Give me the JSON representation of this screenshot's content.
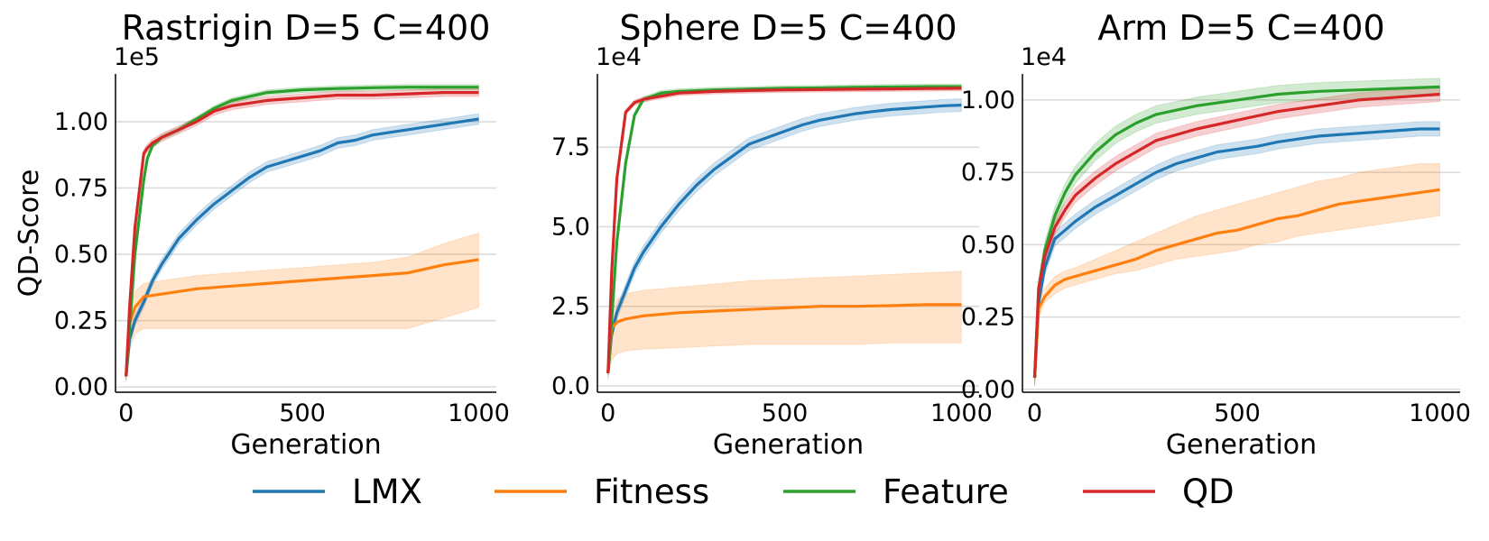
{
  "legend": [
    "LMX",
    "Fitness",
    "Feature",
    "QD"
  ],
  "colors": {
    "LMX": "#1f77b4",
    "Fitness": "#ff7f0e",
    "Feature": "#2ca02c",
    "QD": "#d62728"
  },
  "chart_data": [
    {
      "type": "line",
      "title": "Rastrigin D=5 C=400",
      "xlabel": "Generation",
      "ylabel": "QD-Score",
      "exponent_label": "1e5",
      "xlim": [
        -30,
        1050
      ],
      "ylim": [
        -0.02,
        1.18
      ],
      "xticks": [
        0,
        500,
        1000
      ],
      "xtick_labels": [
        "0",
        "500",
        "1000"
      ],
      "yticks": [
        0,
        0.25,
        0.5,
        0.75,
        1.0
      ],
      "ytick_labels": [
        "0.00",
        "0.25",
        "0.50",
        "0.75",
        "1.00"
      ],
      "grid": "horizontal",
      "series": [
        {
          "name": "LMX",
          "x": [
            0,
            10,
            25,
            50,
            75,
            100,
            150,
            200,
            250,
            300,
            350,
            400,
            450,
            500,
            550,
            600,
            650,
            700,
            750,
            800,
            850,
            900,
            950,
            1000
          ],
          "y": [
            0.04,
            0.18,
            0.25,
            0.32,
            0.4,
            0.46,
            0.56,
            0.63,
            0.69,
            0.74,
            0.79,
            0.83,
            0.85,
            0.87,
            0.89,
            0.92,
            0.93,
            0.95,
            0.96,
            0.97,
            0.98,
            0.99,
            1.0,
            1.01
          ],
          "band": 0.02
        },
        {
          "name": "Fitness",
          "x": [
            0,
            10,
            25,
            50,
            100,
            200,
            300,
            400,
            500,
            600,
            700,
            800,
            900,
            950,
            1000
          ],
          "y": [
            0.04,
            0.24,
            0.3,
            0.34,
            0.35,
            0.37,
            0.38,
            0.39,
            0.4,
            0.41,
            0.42,
            0.43,
            0.46,
            0.47,
            0.48
          ],
          "upper": [
            0.05,
            0.28,
            0.36,
            0.39,
            0.4,
            0.42,
            0.43,
            0.44,
            0.45,
            0.46,
            0.47,
            0.49,
            0.54,
            0.56,
            0.58
          ],
          "lower": [
            0.03,
            0.14,
            0.2,
            0.22,
            0.22,
            0.22,
            0.22,
            0.22,
            0.22,
            0.22,
            0.22,
            0.22,
            0.26,
            0.28,
            0.3
          ]
        },
        {
          "name": "Feature",
          "x": [
            0,
            10,
            25,
            50,
            60,
            75,
            100,
            150,
            200,
            250,
            300,
            400,
            500,
            600,
            700,
            800,
            900,
            1000
          ],
          "y": [
            0.04,
            0.22,
            0.5,
            0.78,
            0.86,
            0.91,
            0.94,
            0.97,
            1.01,
            1.05,
            1.08,
            1.11,
            1.12,
            1.125,
            1.128,
            1.13,
            1.13,
            1.13
          ],
          "band": 0.01
        },
        {
          "name": "QD",
          "x": [
            0,
            10,
            25,
            50,
            60,
            75,
            100,
            150,
            200,
            250,
            300,
            400,
            500,
            600,
            700,
            800,
            900,
            1000
          ],
          "y": [
            0.04,
            0.3,
            0.6,
            0.88,
            0.9,
            0.92,
            0.94,
            0.97,
            1.0,
            1.04,
            1.06,
            1.08,
            1.09,
            1.1,
            1.1,
            1.105,
            1.11,
            1.11
          ],
          "band": 0.015
        }
      ]
    },
    {
      "type": "line",
      "title": "Sphere D=5 C=400",
      "xlabel": "Generation",
      "ylabel": "",
      "exponent_label": "1e4",
      "xlim": [
        -30,
        1050
      ],
      "ylim": [
        -0.2,
        9.8
      ],
      "xticks": [
        0,
        500,
        1000
      ],
      "xtick_labels": [
        "0",
        "500",
        "1000"
      ],
      "yticks": [
        0,
        2.5,
        5.0,
        7.5
      ],
      "ytick_labels": [
        "0.0",
        "2.5",
        "5.0",
        "7.5"
      ],
      "grid": "horizontal",
      "series": [
        {
          "name": "LMX",
          "x": [
            0,
            10,
            25,
            50,
            75,
            100,
            150,
            200,
            250,
            300,
            350,
            400,
            450,
            500,
            550,
            600,
            650,
            700,
            750,
            800,
            850,
            900,
            950,
            1000
          ],
          "y": [
            0.4,
            1.6,
            2.3,
            3.0,
            3.7,
            4.2,
            5.0,
            5.7,
            6.3,
            6.8,
            7.2,
            7.6,
            7.8,
            8.0,
            8.2,
            8.35,
            8.45,
            8.55,
            8.62,
            8.68,
            8.72,
            8.76,
            8.8,
            8.82
          ],
          "band": 0.2
        },
        {
          "name": "Fitness",
          "x": [
            0,
            10,
            25,
            50,
            100,
            200,
            300,
            400,
            500,
            600,
            700,
            800,
            900,
            1000
          ],
          "y": [
            0.4,
            1.8,
            2.0,
            2.1,
            2.2,
            2.3,
            2.35,
            2.4,
            2.45,
            2.5,
            2.5,
            2.52,
            2.55,
            2.55
          ],
          "upper": [
            0.5,
            2.3,
            2.7,
            2.9,
            3.0,
            3.1,
            3.2,
            3.3,
            3.35,
            3.4,
            3.45,
            3.5,
            3.55,
            3.6
          ],
          "lower": [
            0.3,
            0.8,
            1.0,
            1.1,
            1.15,
            1.2,
            1.25,
            1.3,
            1.3,
            1.3,
            1.3,
            1.35,
            1.35,
            1.35
          ]
        },
        {
          "name": "Feature",
          "x": [
            0,
            10,
            25,
            50,
            75,
            100,
            150,
            200,
            300,
            400,
            500,
            600,
            700,
            800,
            900,
            1000
          ],
          "y": [
            0.4,
            2.0,
            4.5,
            7.0,
            8.5,
            9.0,
            9.2,
            9.25,
            9.3,
            9.32,
            9.35,
            9.36,
            9.38,
            9.39,
            9.4,
            9.4
          ],
          "band": 0.08
        },
        {
          "name": "QD",
          "x": [
            0,
            10,
            25,
            50,
            75,
            100,
            150,
            200,
            300,
            400,
            500,
            600,
            700,
            800,
            900,
            1000
          ],
          "y": [
            0.4,
            3.5,
            6.5,
            8.6,
            8.9,
            9.0,
            9.1,
            9.2,
            9.25,
            9.28,
            9.3,
            9.31,
            9.32,
            9.33,
            9.34,
            9.35
          ],
          "band": 0.08
        }
      ]
    },
    {
      "type": "line",
      "title": "Arm D=5 C=400",
      "xlabel": "Generation",
      "ylabel": "",
      "exponent_label": "1e4",
      "xlim": [
        -30,
        1050
      ],
      "ylim": [
        -0.01,
        1.09
      ],
      "xticks": [
        0,
        500,
        1000
      ],
      "xtick_labels": [
        "0",
        "500",
        "1000"
      ],
      "yticks": [
        0,
        0.25,
        0.5,
        0.75,
        1.0
      ],
      "ytick_labels": [
        "0.00",
        "0.25",
        "0.50",
        "0.75",
        "1.00"
      ],
      "grid": "horizontal",
      "series": [
        {
          "name": "LMX",
          "x": [
            0,
            10,
            25,
            50,
            75,
            100,
            150,
            200,
            250,
            300,
            350,
            400,
            450,
            500,
            550,
            600,
            650,
            700,
            750,
            800,
            850,
            900,
            950,
            1000
          ],
          "y": [
            0.04,
            0.3,
            0.42,
            0.52,
            0.55,
            0.58,
            0.63,
            0.67,
            0.71,
            0.75,
            0.78,
            0.8,
            0.82,
            0.83,
            0.84,
            0.855,
            0.865,
            0.875,
            0.88,
            0.885,
            0.89,
            0.895,
            0.9,
            0.9
          ],
          "band": 0.025
        },
        {
          "name": "Fitness",
          "x": [
            0,
            10,
            25,
            50,
            75,
            100,
            150,
            200,
            250,
            300,
            350,
            400,
            450,
            500,
            550,
            600,
            650,
            700,
            750,
            800,
            850,
            900,
            950,
            1000
          ],
          "y": [
            0.04,
            0.28,
            0.32,
            0.36,
            0.38,
            0.39,
            0.41,
            0.43,
            0.45,
            0.48,
            0.5,
            0.52,
            0.54,
            0.55,
            0.57,
            0.59,
            0.6,
            0.62,
            0.64,
            0.65,
            0.66,
            0.67,
            0.68,
            0.69
          ],
          "upper": [
            0.05,
            0.31,
            0.35,
            0.39,
            0.41,
            0.42,
            0.45,
            0.48,
            0.51,
            0.54,
            0.57,
            0.6,
            0.62,
            0.64,
            0.66,
            0.68,
            0.7,
            0.72,
            0.73,
            0.75,
            0.76,
            0.77,
            0.78,
            0.78
          ],
          "lower": [
            0.03,
            0.25,
            0.3,
            0.33,
            0.35,
            0.36,
            0.38,
            0.4,
            0.41,
            0.43,
            0.45,
            0.46,
            0.47,
            0.48,
            0.5,
            0.51,
            0.53,
            0.54,
            0.55,
            0.56,
            0.57,
            0.58,
            0.59,
            0.6
          ]
        },
        {
          "name": "Feature",
          "x": [
            0,
            10,
            25,
            50,
            75,
            100,
            150,
            200,
            250,
            300,
            400,
            500,
            600,
            700,
            800,
            900,
            1000
          ],
          "y": [
            0.04,
            0.35,
            0.48,
            0.6,
            0.68,
            0.74,
            0.82,
            0.88,
            0.92,
            0.95,
            0.98,
            1.0,
            1.02,
            1.03,
            1.035,
            1.04,
            1.045
          ],
          "band": 0.03
        },
        {
          "name": "QD",
          "x": [
            0,
            10,
            25,
            50,
            75,
            100,
            150,
            200,
            250,
            300,
            400,
            500,
            600,
            700,
            800,
            900,
            1000
          ],
          "y": [
            0.04,
            0.35,
            0.46,
            0.56,
            0.62,
            0.67,
            0.73,
            0.78,
            0.82,
            0.86,
            0.9,
            0.93,
            0.96,
            0.98,
            1.0,
            1.01,
            1.02
          ],
          "band": 0.025
        }
      ]
    }
  ]
}
